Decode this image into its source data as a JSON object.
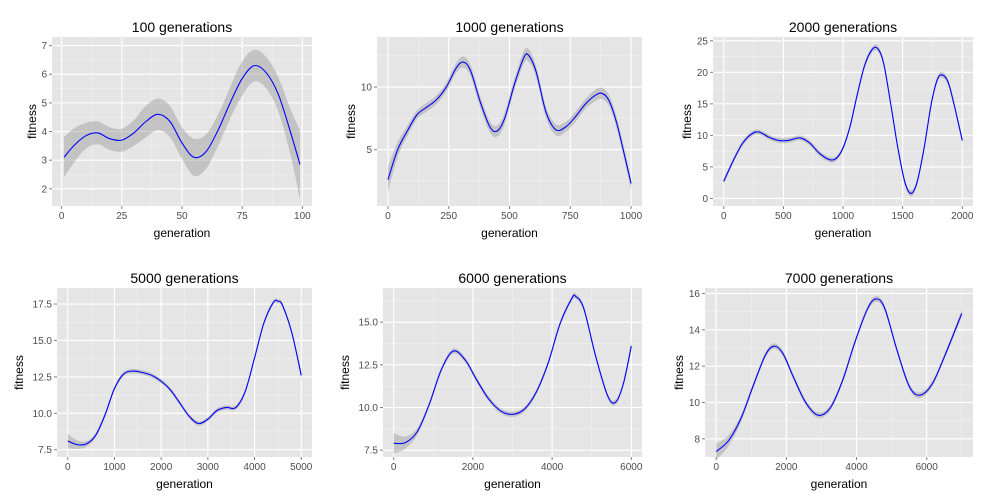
{
  "chart_data": [
    {
      "type": "line",
      "title": "100 generations",
      "xlabel": "generation",
      "ylabel": "fitness",
      "xlim": [
        -4,
        104
      ],
      "ylim": [
        1.4,
        7.3
      ],
      "xticks": [
        0,
        25,
        50,
        75,
        100
      ],
      "xtick_labels": [
        "0",
        "25",
        "50",
        "75",
        "100"
      ],
      "yticks": [
        2,
        3,
        4,
        5,
        6,
        7
      ],
      "ytick_labels": [
        "2",
        "3",
        "4",
        "5",
        "6",
        "7"
      ],
      "grid": true,
      "series": [
        {
          "x": [
            1,
            5,
            10,
            15,
            20,
            25,
            30,
            35,
            40,
            45,
            50,
            55,
            60,
            65,
            70,
            75,
            80,
            85,
            90,
            95,
            99
          ],
          "y": [
            3.1,
            3.5,
            3.85,
            3.95,
            3.75,
            3.7,
            3.95,
            4.35,
            4.6,
            4.35,
            3.6,
            3.1,
            3.3,
            4.05,
            5.0,
            5.85,
            6.3,
            6.05,
            5.3,
            4.0,
            2.85
          ],
          "band": [
            0.7,
            0.6,
            0.45,
            0.4,
            0.4,
            0.4,
            0.45,
            0.55,
            0.55,
            0.55,
            0.55,
            0.65,
            0.6,
            0.55,
            0.55,
            0.6,
            0.55,
            0.55,
            0.6,
            0.8,
            1.2
          ]
        }
      ]
    },
    {
      "type": "line",
      "title": "1000 generations",
      "xlabel": "generation",
      "ylabel": "fitness",
      "xlim": [
        -45,
        1045
      ],
      "ylim": [
        0.5,
        14.0
      ],
      "xticks": [
        0,
        250,
        500,
        750,
        1000
      ],
      "xtick_labels": [
        "0",
        "250",
        "500",
        "750",
        "1000"
      ],
      "yticks": [
        5,
        10
      ],
      "ytick_labels": [
        "5",
        "10"
      ],
      "grid": true,
      "series": [
        {
          "x": [
            0,
            40,
            80,
            120,
            160,
            200,
            240,
            280,
            310,
            340,
            380,
            420,
            450,
            480,
            520,
            560,
            580,
            610,
            650,
            690,
            730,
            770,
            810,
            850,
            880,
            910,
            940,
            970,
            1000
          ],
          "y": [
            2.6,
            5.0,
            6.5,
            7.8,
            8.4,
            9.0,
            10.0,
            11.5,
            12.0,
            11.3,
            8.8,
            6.8,
            6.5,
            7.5,
            10.2,
            12.4,
            12.5,
            11.2,
            8.0,
            6.6,
            6.8,
            7.6,
            8.6,
            9.3,
            9.5,
            8.9,
            7.2,
            4.8,
            2.3
          ],
          "band": [
            1.0,
            0.6,
            0.4,
            0.35,
            0.35,
            0.35,
            0.35,
            0.4,
            0.45,
            0.45,
            0.45,
            0.45,
            0.45,
            0.45,
            0.45,
            0.5,
            0.5,
            0.45,
            0.45,
            0.45,
            0.4,
            0.4,
            0.4,
            0.45,
            0.45,
            0.45,
            0.45,
            0.45,
            0.5
          ]
        }
      ]
    },
    {
      "type": "line",
      "title": "2000 generations",
      "xlabel": "generation",
      "ylabel": "fitness",
      "xlim": [
        -90,
        2090
      ],
      "ylim": [
        -1.2,
        25.6
      ],
      "xticks": [
        0,
        500,
        1000,
        1500,
        2000
      ],
      "xtick_labels": [
        "0",
        "500",
        "1000",
        "1500",
        "2000"
      ],
      "yticks": [
        0,
        5,
        10,
        15,
        20,
        25
      ],
      "ytick_labels": [
        "0",
        "5",
        "10",
        "15",
        "20",
        "25"
      ],
      "grid": true,
      "series": [
        {
          "x": [
            0,
            80,
            160,
            240,
            300,
            380,
            460,
            540,
            640,
            720,
            800,
            880,
            940,
            1000,
            1060,
            1120,
            1180,
            1240,
            1290,
            1340,
            1400,
            1460,
            1520,
            1570,
            1620,
            1680,
            1740,
            1790,
            1830,
            1880,
            1930,
            2000
          ],
          "y": [
            2.7,
            6.0,
            8.8,
            10.3,
            10.5,
            9.7,
            9.2,
            9.2,
            9.6,
            8.8,
            7.2,
            6.2,
            6.3,
            8.0,
            11.5,
            16.5,
            21.0,
            23.5,
            23.8,
            21.5,
            15.0,
            8.0,
            2.5,
            0.8,
            2.5,
            8.0,
            15.0,
            18.8,
            19.6,
            18.5,
            15.0,
            9.2
          ],
          "band": [
            0.5,
            0.4,
            0.4,
            0.4,
            0.4,
            0.4,
            0.4,
            0.4,
            0.4,
            0.4,
            0.4,
            0.4,
            0.4,
            0.4,
            0.4,
            0.45,
            0.45,
            0.45,
            0.45,
            0.45,
            0.45,
            0.45,
            0.45,
            0.5,
            0.45,
            0.45,
            0.45,
            0.45,
            0.45,
            0.45,
            0.45,
            0.5
          ]
        }
      ]
    },
    {
      "type": "line",
      "title": "5000 generations",
      "xlabel": "generation",
      "ylabel": "fitness",
      "xlim": [
        -230,
        5230
      ],
      "ylim": [
        7.0,
        18.6
      ],
      "xticks": [
        0,
        1000,
        2000,
        3000,
        4000,
        5000
      ],
      "xtick_labels": [
        "0",
        "1000",
        "2000",
        "3000",
        "4000",
        "5000"
      ],
      "yticks": [
        7.5,
        10.0,
        12.5,
        15.0,
        17.5
      ],
      "ytick_labels": [
        "7.5",
        "10.0",
        "12.5",
        "15.0",
        "17.5"
      ],
      "grid": true,
      "series": [
        {
          "x": [
            0,
            200,
            400,
            600,
            800,
            1000,
            1200,
            1400,
            1600,
            1800,
            2000,
            2200,
            2400,
            2600,
            2800,
            3000,
            3200,
            3400,
            3600,
            3800,
            4000,
            4200,
            4400,
            4500,
            4600,
            4800,
            5000
          ],
          "y": [
            8.1,
            7.85,
            7.9,
            8.5,
            9.9,
            11.7,
            12.7,
            12.9,
            12.8,
            12.6,
            12.2,
            11.6,
            10.7,
            9.8,
            9.3,
            9.6,
            10.2,
            10.4,
            10.4,
            11.5,
            13.8,
            16.2,
            17.6,
            17.7,
            17.4,
            15.5,
            12.6
          ],
          "band": [
            0.5,
            0.3,
            0.2,
            0.15,
            0.15,
            0.15,
            0.15,
            0.15,
            0.15,
            0.15,
            0.15,
            0.15,
            0.15,
            0.15,
            0.15,
            0.15,
            0.15,
            0.15,
            0.15,
            0.15,
            0.15,
            0.15,
            0.15,
            0.15,
            0.15,
            0.15,
            0.25
          ]
        }
      ]
    },
    {
      "type": "line",
      "title": "6000 generations",
      "xlabel": "generation",
      "ylabel": "fitness",
      "xlim": [
        -270,
        6270
      ],
      "ylim": [
        7.1,
        17.0
      ],
      "xticks": [
        0,
        2000,
        4000,
        6000
      ],
      "xtick_labels": [
        "0",
        "2000",
        "4000",
        "6000"
      ],
      "yticks": [
        7.5,
        10.0,
        12.5,
        15.0
      ],
      "ytick_labels": [
        "7.5",
        "10.0",
        "12.5",
        "15.0"
      ],
      "grid": true,
      "series": [
        {
          "x": [
            0,
            300,
            600,
            900,
            1200,
            1500,
            1800,
            2100,
            2400,
            2700,
            3000,
            3300,
            3600,
            3900,
            4200,
            4500,
            4600,
            4800,
            5100,
            5400,
            5600,
            5800,
            6000
          ],
          "y": [
            7.9,
            7.95,
            8.6,
            10.2,
            12.2,
            13.3,
            12.8,
            11.6,
            10.5,
            9.8,
            9.6,
            9.9,
            10.9,
            12.6,
            14.9,
            16.4,
            16.5,
            15.8,
            13.0,
            10.7,
            10.3,
            11.4,
            13.6
          ],
          "band": [
            0.6,
            0.35,
            0.2,
            0.15,
            0.15,
            0.15,
            0.15,
            0.15,
            0.15,
            0.15,
            0.15,
            0.15,
            0.15,
            0.15,
            0.15,
            0.15,
            0.15,
            0.15,
            0.15,
            0.15,
            0.15,
            0.15,
            0.25
          ]
        }
      ]
    },
    {
      "type": "line",
      "title": "7000 generations",
      "xlabel": "generation",
      "ylabel": "fitness",
      "xlim": [
        -320,
        7320
      ],
      "ylim": [
        7.0,
        16.3
      ],
      "xticks": [
        0,
        2000,
        4000,
        6000
      ],
      "xtick_labels": [
        "0",
        "2000",
        "4000",
        "6000"
      ],
      "yticks": [
        8,
        10,
        12,
        14,
        16
      ],
      "ytick_labels": [
        "8",
        "10",
        "12",
        "14",
        "16"
      ],
      "grid": true,
      "series": [
        {
          "x": [
            0,
            350,
            700,
            1050,
            1400,
            1650,
            1900,
            2200,
            2550,
            2900,
            3250,
            3600,
            3950,
            4300,
            4550,
            4800,
            5150,
            5500,
            5800,
            6150,
            6500,
            7000
          ],
          "y": [
            7.3,
            7.9,
            9.1,
            10.9,
            12.6,
            13.1,
            12.7,
            11.4,
            10.0,
            9.3,
            9.7,
            11.2,
            13.3,
            15.1,
            15.7,
            15.2,
            12.9,
            10.9,
            10.4,
            11.0,
            12.5,
            14.9
          ],
          "band": [
            0.45,
            0.3,
            0.2,
            0.15,
            0.15,
            0.15,
            0.15,
            0.15,
            0.15,
            0.15,
            0.15,
            0.15,
            0.15,
            0.15,
            0.15,
            0.15,
            0.15,
            0.15,
            0.15,
            0.15,
            0.15,
            0.2
          ]
        }
      ]
    }
  ]
}
